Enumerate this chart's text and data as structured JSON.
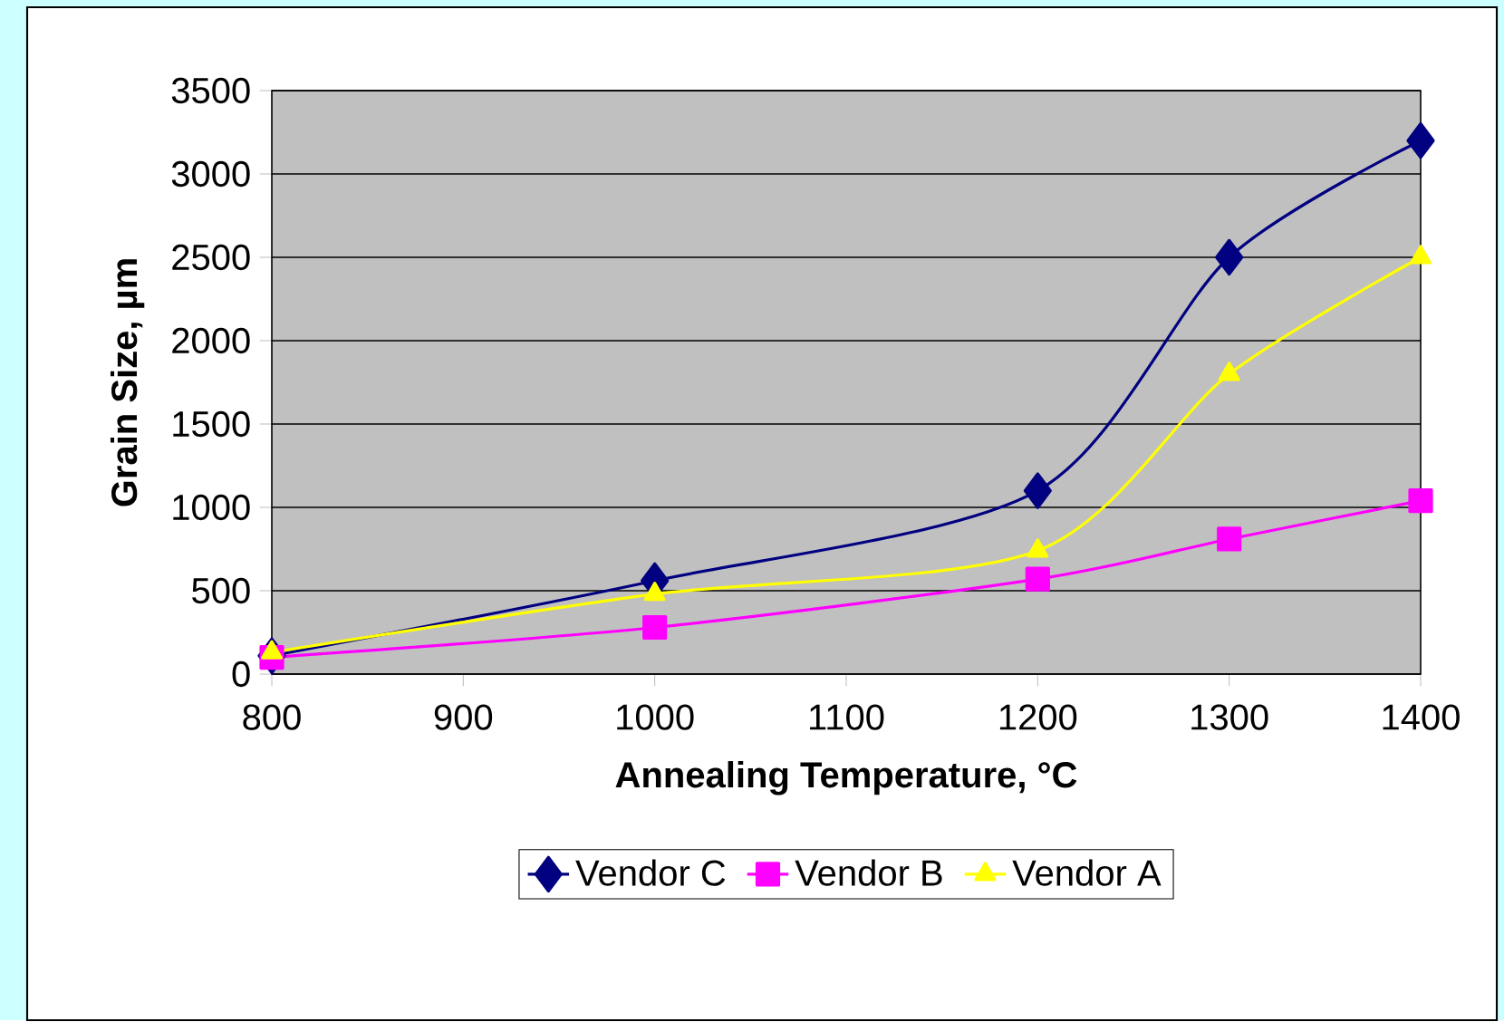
{
  "chart_data": {
    "type": "line",
    "xlabel": "Annealing Temperature, °C",
    "ylabel": "Grain Size, µm",
    "x": [
      800,
      1000,
      1200,
      1300,
      1400
    ],
    "series": [
      {
        "name": "Vendor C",
        "color": "#000080",
        "marker": "diamond",
        "values": [
          110,
          560,
          1100,
          2500,
          3200
        ]
      },
      {
        "name": "Vendor B",
        "color": "#ff00ff",
        "marker": "square",
        "values": [
          100,
          280,
          570,
          810,
          1040
        ]
      },
      {
        "name": "Vendor A",
        "color": "#ffff00",
        "marker": "triangle",
        "values": [
          130,
          480,
          740,
          1800,
          2500
        ]
      }
    ],
    "xlim": [
      800,
      1400
    ],
    "xticks": [
      800,
      900,
      1000,
      1100,
      1200,
      1300,
      1400
    ],
    "ylim": [
      0,
      3500
    ],
    "yticks": [
      0,
      500,
      1000,
      1500,
      2000,
      2500,
      3000,
      3500
    ],
    "grid": "y",
    "legend": "bottom",
    "line_style": "solid"
  }
}
